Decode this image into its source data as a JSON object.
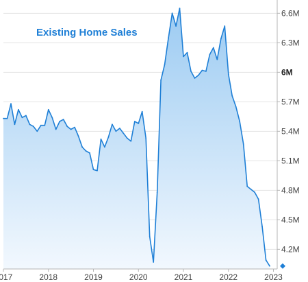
{
  "chart_data": {
    "type": "area",
    "title": "Existing Home Sales",
    "y_unit": "M",
    "ylim": [
      4.0,
      6.7
    ],
    "yticks": [
      {
        "value": 4.2,
        "label": "4.2M",
        "bold": false
      },
      {
        "value": 4.5,
        "label": "4.5M",
        "bold": false
      },
      {
        "value": 4.8,
        "label": "4.8M",
        "bold": false
      },
      {
        "value": 5.1,
        "label": "5.1M",
        "bold": false
      },
      {
        "value": 5.4,
        "label": "5.4M",
        "bold": false
      },
      {
        "value": 5.7,
        "label": "5.7M",
        "bold": false
      },
      {
        "value": 6.0,
        "label": "6M",
        "bold": true
      },
      {
        "value": 6.3,
        "label": "6.3M",
        "bold": false
      },
      {
        "value": 6.6,
        "label": "6.6M",
        "bold": false
      }
    ],
    "xlim": [
      "2017-01",
      "2023-02"
    ],
    "xticks": [
      "2017",
      "2018",
      "2019",
      "2020",
      "2021",
      "2022",
      "2023"
    ],
    "last_value_marker": 4.03,
    "colors": {
      "line": "#1e7fd6",
      "fill_top": "#9ccbf2",
      "fill_bottom": "#f2f8fe",
      "grid": "#e3e3e3",
      "axis": "#b5b5b5",
      "marker": "#1e7fd6"
    },
    "series": [
      {
        "x": [
          "2017-01",
          "2017-02",
          "2017-03",
          "2017-04",
          "2017-05",
          "2017-06",
          "2017-07",
          "2017-08",
          "2017-09",
          "2017-10",
          "2017-11",
          "2017-12",
          "2018-01",
          "2018-02",
          "2018-03",
          "2018-04",
          "2018-05",
          "2018-06",
          "2018-07",
          "2018-08",
          "2018-09",
          "2018-10",
          "2018-11",
          "2018-12",
          "2019-01",
          "2019-02",
          "2019-03",
          "2019-04",
          "2019-05",
          "2019-06",
          "2019-07",
          "2019-08",
          "2019-09",
          "2019-10",
          "2019-11",
          "2019-12",
          "2020-01",
          "2020-02",
          "2020-03",
          "2020-04",
          "2020-05",
          "2020-06",
          "2020-07",
          "2020-08",
          "2020-09",
          "2020-10",
          "2020-11",
          "2020-12",
          "2021-01",
          "2021-02",
          "2021-03",
          "2021-04",
          "2021-05",
          "2021-06",
          "2021-07",
          "2021-08",
          "2021-09",
          "2021-10",
          "2021-11",
          "2021-12",
          "2022-01",
          "2022-02",
          "2022-03",
          "2022-04",
          "2022-05",
          "2022-06",
          "2022-07",
          "2022-08",
          "2022-09",
          "2022-10",
          "2022-11",
          "2022-12"
        ],
        "values": [
          5.53,
          5.53,
          5.68,
          5.47,
          5.62,
          5.54,
          5.56,
          5.47,
          5.45,
          5.4,
          5.46,
          5.46,
          5.62,
          5.54,
          5.42,
          5.5,
          5.52,
          5.45,
          5.42,
          5.44,
          5.35,
          5.24,
          5.2,
          5.18,
          5.01,
          5.0,
          5.32,
          5.24,
          5.34,
          5.47,
          5.4,
          5.43,
          5.38,
          5.33,
          5.3,
          5.5,
          5.48,
          5.6,
          5.33,
          4.33,
          4.07,
          4.78,
          5.92,
          6.08,
          6.35,
          6.6,
          6.47,
          6.65,
          6.16,
          6.2,
          6.01,
          5.94,
          5.97,
          6.02,
          6.01,
          6.18,
          6.25,
          6.13,
          6.34,
          6.47,
          5.98,
          5.76,
          5.65,
          5.5,
          5.27,
          4.84,
          4.81,
          4.78,
          4.71,
          4.43,
          4.09,
          4.03
        ]
      }
    ]
  }
}
